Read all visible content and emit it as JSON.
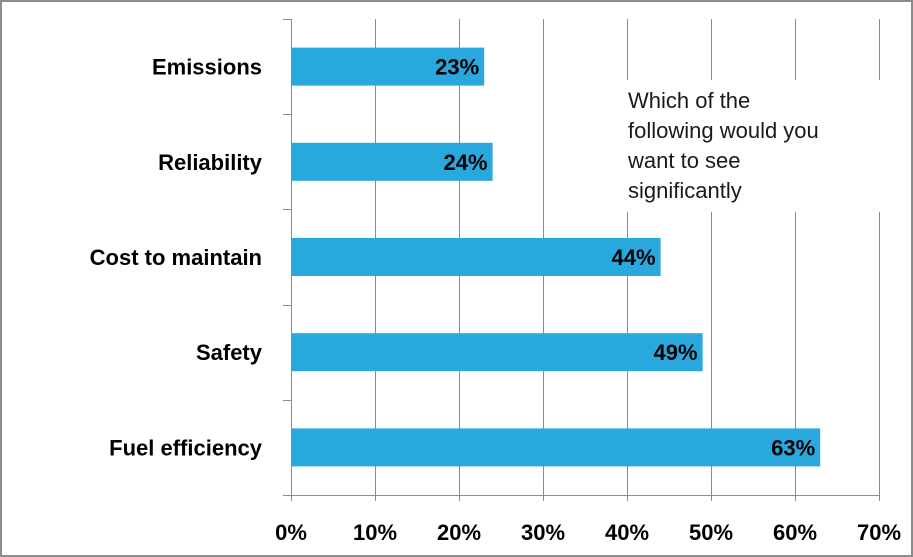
{
  "chart_data": {
    "type": "bar",
    "orientation": "horizontal",
    "categories": [
      "Emissions",
      "Reliability",
      "Cost to maintain",
      "Safety",
      "Fuel efficiency"
    ],
    "values": [
      23,
      24,
      44,
      49,
      63
    ],
    "data_labels": [
      "23%",
      "24%",
      "44%",
      "49%",
      "63%"
    ],
    "xlim": [
      0,
      70
    ],
    "x_ticks": [
      "0%",
      "10%",
      "20%",
      "30%",
      "40%",
      "50%",
      "60%",
      "70%"
    ],
    "grid": true,
    "bar_color": "#29a8dd",
    "annotation": "Which of the\nfollowing would you\nwant to see\nsignificantly"
  }
}
